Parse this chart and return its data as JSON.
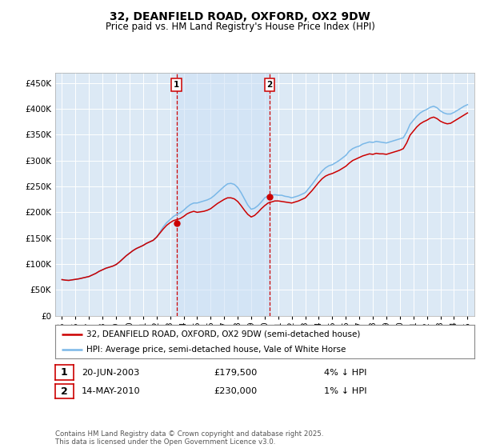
{
  "title": "32, DEANFIELD ROAD, OXFORD, OX2 9DW",
  "subtitle": "Price paid vs. HM Land Registry's House Price Index (HPI)",
  "legend_line1": "32, DEANFIELD ROAD, OXFORD, OX2 9DW (semi-detached house)",
  "legend_line2": "HPI: Average price, semi-detached house, Vale of White Horse",
  "annotation1_date": "20-JUN-2003",
  "annotation1_price": "£179,500",
  "annotation1_hpi": "4% ↓ HPI",
  "annotation1_year": 2003.47,
  "annotation1_value": 179500,
  "annotation2_date": "14-MAY-2010",
  "annotation2_price": "£230,000",
  "annotation2_hpi": "1% ↓ HPI",
  "annotation2_year": 2010.37,
  "annotation2_value": 230000,
  "ytick_values": [
    0,
    50000,
    100000,
    150000,
    200000,
    250000,
    300000,
    350000,
    400000,
    450000
  ],
  "ylim": [
    0,
    470000
  ],
  "xlim_start": 1994.5,
  "xlim_end": 2025.5,
  "background_color": "#ffffff",
  "plot_bg_color": "#dce9f5",
  "grid_color": "#ffffff",
  "hpi_line_color": "#7ab8e8",
  "price_line_color": "#cc0000",
  "shade_color": "#cce0f5",
  "footer_text": "Contains HM Land Registry data © Crown copyright and database right 2025.\nThis data is licensed under the Open Government Licence v3.0.",
  "hpi_data": [
    [
      1995.0,
      70000
    ],
    [
      1995.25,
      69000
    ],
    [
      1995.5,
      68500
    ],
    [
      1995.75,
      69500
    ],
    [
      1996.0,
      70500
    ],
    [
      1996.25,
      71500
    ],
    [
      1996.5,
      73000
    ],
    [
      1996.75,
      74500
    ],
    [
      1997.0,
      76000
    ],
    [
      1997.25,
      79000
    ],
    [
      1997.5,
      82000
    ],
    [
      1997.75,
      86000
    ],
    [
      1998.0,
      89000
    ],
    [
      1998.25,
      92000
    ],
    [
      1998.5,
      94000
    ],
    [
      1998.75,
      96000
    ],
    [
      1999.0,
      99000
    ],
    [
      1999.25,
      104000
    ],
    [
      1999.5,
      110000
    ],
    [
      1999.75,
      116000
    ],
    [
      2000.0,
      121000
    ],
    [
      2000.25,
      126000
    ],
    [
      2000.5,
      130000
    ],
    [
      2000.75,
      133000
    ],
    [
      2001.0,
      136000
    ],
    [
      2001.25,
      140000
    ],
    [
      2001.5,
      143000
    ],
    [
      2001.75,
      146000
    ],
    [
      2002.0,
      152000
    ],
    [
      2002.25,
      162000
    ],
    [
      2002.5,
      172000
    ],
    [
      2002.75,
      180000
    ],
    [
      2003.0,
      186000
    ],
    [
      2003.25,
      192000
    ],
    [
      2003.5,
      196000
    ],
    [
      2003.75,
      199000
    ],
    [
      2004.0,
      204000
    ],
    [
      2004.25,
      210000
    ],
    [
      2004.5,
      215000
    ],
    [
      2004.75,
      218000
    ],
    [
      2005.0,
      218000
    ],
    [
      2005.25,
      220000
    ],
    [
      2005.5,
      222000
    ],
    [
      2005.75,
      224000
    ],
    [
      2006.0,
      227000
    ],
    [
      2006.25,
      232000
    ],
    [
      2006.5,
      238000
    ],
    [
      2006.75,
      244000
    ],
    [
      2007.0,
      250000
    ],
    [
      2007.25,
      255000
    ],
    [
      2007.5,
      256000
    ],
    [
      2007.75,
      254000
    ],
    [
      2008.0,
      248000
    ],
    [
      2008.25,
      238000
    ],
    [
      2008.5,
      226000
    ],
    [
      2008.75,
      214000
    ],
    [
      2009.0,
      206000
    ],
    [
      2009.25,
      208000
    ],
    [
      2009.5,
      213000
    ],
    [
      2009.75,
      220000
    ],
    [
      2010.0,
      228000
    ],
    [
      2010.25,
      232000
    ],
    [
      2010.5,
      233000
    ],
    [
      2010.75,
      234000
    ],
    [
      2011.0,
      233000
    ],
    [
      2011.25,
      233000
    ],
    [
      2011.5,
      231000
    ],
    [
      2011.75,
      230000
    ],
    [
      2012.0,
      228000
    ],
    [
      2012.25,
      230000
    ],
    [
      2012.5,
      232000
    ],
    [
      2012.75,
      235000
    ],
    [
      2013.0,
      238000
    ],
    [
      2013.25,
      246000
    ],
    [
      2013.5,
      254000
    ],
    [
      2013.75,
      263000
    ],
    [
      2014.0,
      272000
    ],
    [
      2014.25,
      280000
    ],
    [
      2014.5,
      286000
    ],
    [
      2014.75,
      290000
    ],
    [
      2015.0,
      292000
    ],
    [
      2015.25,
      296000
    ],
    [
      2015.5,
      300000
    ],
    [
      2015.75,
      305000
    ],
    [
      2016.0,
      310000
    ],
    [
      2016.25,
      318000
    ],
    [
      2016.5,
      323000
    ],
    [
      2016.75,
      326000
    ],
    [
      2017.0,
      328000
    ],
    [
      2017.25,
      332000
    ],
    [
      2017.5,
      334000
    ],
    [
      2017.75,
      336000
    ],
    [
      2018.0,
      335000
    ],
    [
      2018.25,
      337000
    ],
    [
      2018.5,
      336000
    ],
    [
      2018.75,
      335000
    ],
    [
      2019.0,
      334000
    ],
    [
      2019.25,
      336000
    ],
    [
      2019.5,
      338000
    ],
    [
      2019.75,
      340000
    ],
    [
      2020.0,
      342000
    ],
    [
      2020.25,
      344000
    ],
    [
      2020.5,
      355000
    ],
    [
      2020.75,
      370000
    ],
    [
      2021.0,
      378000
    ],
    [
      2021.25,
      386000
    ],
    [
      2021.5,
      392000
    ],
    [
      2021.75,
      396000
    ],
    [
      2022.0,
      399000
    ],
    [
      2022.25,
      403000
    ],
    [
      2022.5,
      405000
    ],
    [
      2022.75,
      402000
    ],
    [
      2023.0,
      396000
    ],
    [
      2023.25,
      392000
    ],
    [
      2023.5,
      390000
    ],
    [
      2023.75,
      390000
    ],
    [
      2024.0,
      393000
    ],
    [
      2024.25,
      397000
    ],
    [
      2024.5,
      401000
    ],
    [
      2024.75,
      405000
    ],
    [
      2025.0,
      408000
    ]
  ],
  "price_data": [
    [
      1995.0,
      70000
    ],
    [
      1995.25,
      69000
    ],
    [
      1995.5,
      68500
    ],
    [
      1995.75,
      69500
    ],
    [
      1996.0,
      70500
    ],
    [
      1996.25,
      71500
    ],
    [
      1996.5,
      73000
    ],
    [
      1996.75,
      74500
    ],
    [
      1997.0,
      76000
    ],
    [
      1997.25,
      79000
    ],
    [
      1997.5,
      82000
    ],
    [
      1997.75,
      86000
    ],
    [
      1998.0,
      89000
    ],
    [
      1998.25,
      92000
    ],
    [
      1998.5,
      94000
    ],
    [
      1998.75,
      96000
    ],
    [
      1999.0,
      99000
    ],
    [
      1999.25,
      104000
    ],
    [
      1999.5,
      110000
    ],
    [
      1999.75,
      116000
    ],
    [
      2000.0,
      121000
    ],
    [
      2000.25,
      126000
    ],
    [
      2000.5,
      130000
    ],
    [
      2000.75,
      133000
    ],
    [
      2001.0,
      136000
    ],
    [
      2001.25,
      140000
    ],
    [
      2001.5,
      143000
    ],
    [
      2001.75,
      146000
    ],
    [
      2002.0,
      152000
    ],
    [
      2002.25,
      160000
    ],
    [
      2002.5,
      168000
    ],
    [
      2002.75,
      175000
    ],
    [
      2003.0,
      180000
    ],
    [
      2003.25,
      184000
    ],
    [
      2003.5,
      186000
    ],
    [
      2003.75,
      188000
    ],
    [
      2004.0,
      192000
    ],
    [
      2004.25,
      197000
    ],
    [
      2004.5,
      200000
    ],
    [
      2004.75,
      202000
    ],
    [
      2005.0,
      200000
    ],
    [
      2005.25,
      201000
    ],
    [
      2005.5,
      202000
    ],
    [
      2005.75,
      204000
    ],
    [
      2006.0,
      207000
    ],
    [
      2006.25,
      212000
    ],
    [
      2006.5,
      217000
    ],
    [
      2006.75,
      221000
    ],
    [
      2007.0,
      225000
    ],
    [
      2007.25,
      228000
    ],
    [
      2007.5,
      228000
    ],
    [
      2007.75,
      226000
    ],
    [
      2008.0,
      221000
    ],
    [
      2008.25,
      213000
    ],
    [
      2008.5,
      204000
    ],
    [
      2008.75,
      196000
    ],
    [
      2009.0,
      191000
    ],
    [
      2009.25,
      194000
    ],
    [
      2009.5,
      200000
    ],
    [
      2009.75,
      207000
    ],
    [
      2010.0,
      213000
    ],
    [
      2010.25,
      218000
    ],
    [
      2010.5,
      220000
    ],
    [
      2010.75,
      222000
    ],
    [
      2011.0,
      222000
    ],
    [
      2011.25,
      221000
    ],
    [
      2011.5,
      220000
    ],
    [
      2011.75,
      219000
    ],
    [
      2012.0,
      218000
    ],
    [
      2012.25,
      220000
    ],
    [
      2012.5,
      222000
    ],
    [
      2012.75,
      225000
    ],
    [
      2013.0,
      228000
    ],
    [
      2013.25,
      235000
    ],
    [
      2013.5,
      242000
    ],
    [
      2013.75,
      250000
    ],
    [
      2014.0,
      258000
    ],
    [
      2014.25,
      265000
    ],
    [
      2014.5,
      270000
    ],
    [
      2014.75,
      273000
    ],
    [
      2015.0,
      275000
    ],
    [
      2015.25,
      278000
    ],
    [
      2015.5,
      281000
    ],
    [
      2015.75,
      285000
    ],
    [
      2016.0,
      289000
    ],
    [
      2016.25,
      295000
    ],
    [
      2016.5,
      300000
    ],
    [
      2016.75,
      303000
    ],
    [
      2017.0,
      306000
    ],
    [
      2017.25,
      309000
    ],
    [
      2017.5,
      311000
    ],
    [
      2017.75,
      313000
    ],
    [
      2018.0,
      312000
    ],
    [
      2018.25,
      314000
    ],
    [
      2018.5,
      313000
    ],
    [
      2018.75,
      313000
    ],
    [
      2019.0,
      312000
    ],
    [
      2019.25,
      314000
    ],
    [
      2019.5,
      316000
    ],
    [
      2019.75,
      318000
    ],
    [
      2020.0,
      320000
    ],
    [
      2020.25,
      323000
    ],
    [
      2020.5,
      334000
    ],
    [
      2020.75,
      349000
    ],
    [
      2021.0,
      357000
    ],
    [
      2021.25,
      365000
    ],
    [
      2021.5,
      371000
    ],
    [
      2021.75,
      375000
    ],
    [
      2022.0,
      378000
    ],
    [
      2022.25,
      382000
    ],
    [
      2022.5,
      384000
    ],
    [
      2022.75,
      381000
    ],
    [
      2023.0,
      376000
    ],
    [
      2023.25,
      373000
    ],
    [
      2023.5,
      371000
    ],
    [
      2023.75,
      372000
    ],
    [
      2024.0,
      376000
    ],
    [
      2024.25,
      380000
    ],
    [
      2024.5,
      384000
    ],
    [
      2024.75,
      388000
    ],
    [
      2025.0,
      392000
    ]
  ]
}
